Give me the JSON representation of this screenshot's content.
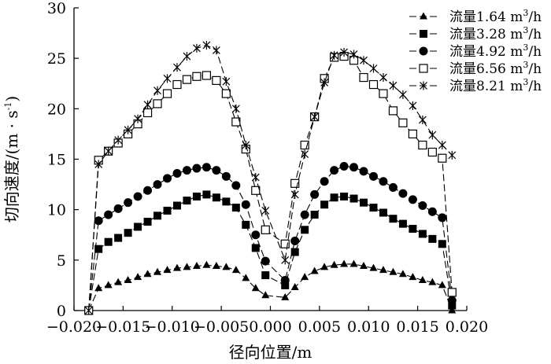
{
  "chart_data": {
    "type": "line",
    "xlabel": "径向位置/m",
    "ylabel": "切向速度/(m · s⁻¹)",
    "ylabel_parts": {
      "main": "切向速度/(m · s",
      "sup": "-1",
      "end": ")"
    },
    "xlim": [
      -0.02,
      0.02
    ],
    "ylim": [
      0,
      30
    ],
    "xticks": [
      -0.02,
      -0.015,
      -0.01,
      -0.005,
      0,
      0.005,
      0.01,
      0.015,
      0.02
    ],
    "xtick_labels": [
      "−0.020",
      "−0.015",
      "−0.010",
      "−0.005",
      "0.000",
      "0.005",
      "0.010",
      "0.015",
      "0.020"
    ],
    "yticks": [
      0,
      5,
      10,
      15,
      20,
      25,
      30
    ],
    "ytick_labels": [
      "0",
      "5",
      "10",
      "15",
      "20",
      "25",
      "30"
    ],
    "grid": false,
    "legend_position": "top-right",
    "x": [
      -0.0185,
      -0.0175,
      -0.0165,
      -0.0155,
      -0.0145,
      -0.0135,
      -0.0125,
      -0.0115,
      -0.0105,
      -0.0095,
      -0.0085,
      -0.0075,
      -0.0065,
      -0.0055,
      -0.0045,
      -0.0035,
      -0.0025,
      -0.0015,
      -0.0005,
      0.0015,
      0.0025,
      0.0035,
      0.0045,
      0.0055,
      0.0065,
      0.0075,
      0.0085,
      0.0095,
      0.0105,
      0.0115,
      0.0125,
      0.0135,
      0.0145,
      0.0155,
      0.0165,
      0.0175,
      0.0185
    ],
    "series": [
      {
        "name": "流量1.64 m³/h",
        "legend_main": "流量1.64 m",
        "legend_sup": "3",
        "legend_end": "/h",
        "marker": "triangle",
        "values": [
          0,
          2.2,
          2.5,
          2.8,
          3.0,
          3.3,
          3.6,
          3.8,
          4.0,
          4.2,
          4.3,
          4.4,
          4.5,
          4.4,
          4.3,
          4.0,
          3.2,
          2.2,
          1.5,
          1.3,
          2.3,
          3.3,
          3.9,
          4.3,
          4.5,
          4.6,
          4.6,
          4.4,
          4.2,
          4.0,
          3.8,
          3.6,
          3.3,
          3.0,
          2.8,
          2.5,
          0
        ]
      },
      {
        "name": "流量3.28 m³/h",
        "legend_main": "流量3.28 m",
        "legend_sup": "3",
        "legend_end": "/h",
        "marker": "square-filled",
        "values": [
          0,
          6.1,
          6.8,
          7.2,
          7.7,
          8.3,
          8.8,
          9.4,
          9.9,
          10.4,
          10.9,
          11.3,
          11.5,
          11.2,
          10.8,
          10.2,
          8.5,
          6.2,
          3.5,
          2.5,
          5.8,
          8.0,
          9.5,
          10.5,
          11.2,
          11.3,
          11.1,
          10.7,
          10.2,
          9.7,
          9.1,
          8.6,
          8.1,
          7.6,
          7.1,
          6.6,
          0.5
        ]
      },
      {
        "name": "流量4.92 m³/h",
        "legend_main": "流量4.92 m",
        "legend_sup": "3",
        "legend_end": "/h",
        "marker": "circle-filled",
        "values": [
          0,
          8.9,
          9.5,
          10.1,
          10.7,
          11.3,
          11.9,
          12.5,
          13.1,
          13.6,
          13.9,
          14.1,
          14.2,
          13.9,
          13.3,
          12.4,
          10.5,
          7.5,
          4.9,
          3.0,
          6.9,
          9.5,
          11.5,
          12.8,
          13.9,
          14.3,
          14.2,
          13.8,
          13.3,
          12.8,
          12.2,
          11.6,
          11.0,
          10.4,
          9.8,
          9.2,
          1.0
        ]
      },
      {
        "name": "流量6.56 m³/h",
        "legend_main": "流量6.56 m",
        "legend_sup": "3",
        "legend_end": "/h",
        "marker": "square-open",
        "values": [
          0,
          14.9,
          15.8,
          16.6,
          17.5,
          18.5,
          19.6,
          20.5,
          21.5,
          22.4,
          22.9,
          23.2,
          23.3,
          22.8,
          21.5,
          18.7,
          16.0,
          11.9,
          8.0,
          6.6,
          12.6,
          16.4,
          19.2,
          23.0,
          25.1,
          25.2,
          24.8,
          23.1,
          22.4,
          21.5,
          19.8,
          18.6,
          17.5,
          16.4,
          15.7,
          15.1,
          1.8
        ]
      },
      {
        "name": "流量8.21 m³/h",
        "legend_main": "流量8.21 m",
        "legend_sup": "3",
        "legend_end": "/h",
        "marker": "star",
        "values": [
          0,
          14.5,
          15.8,
          16.9,
          17.9,
          19.0,
          20.4,
          21.8,
          23.0,
          24.1,
          25.2,
          26.0,
          26.3,
          25.8,
          22.7,
          20.0,
          16.4,
          13.2,
          9.9,
          5.0,
          11.5,
          15.5,
          19.2,
          22.6,
          25.3,
          25.6,
          25.4,
          24.8,
          24.0,
          23.1,
          22.3,
          21.4,
          20.3,
          18.9,
          17.4,
          16.4,
          15.4
        ]
      }
    ]
  }
}
